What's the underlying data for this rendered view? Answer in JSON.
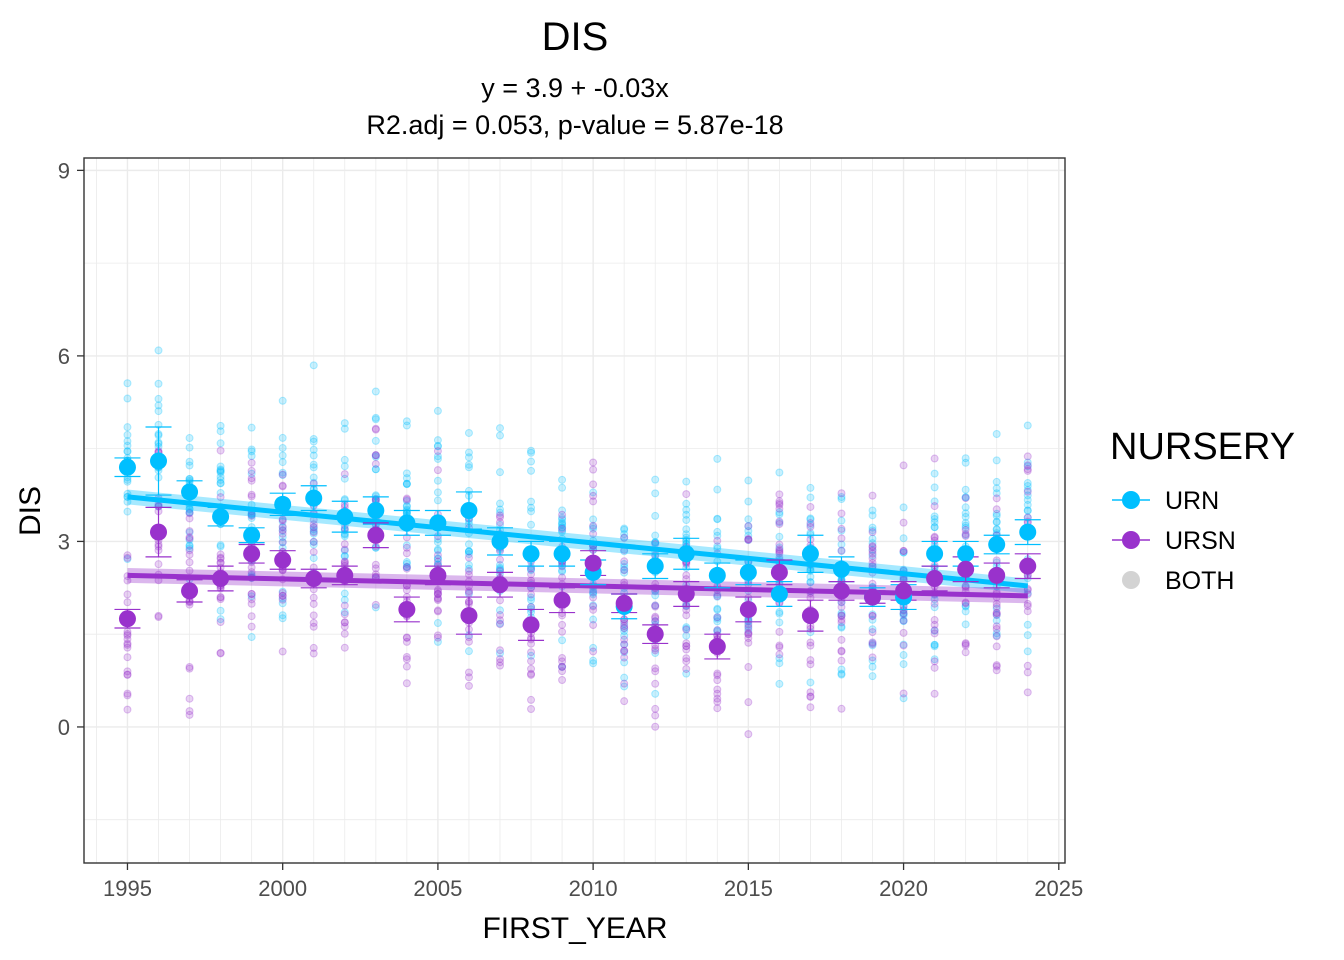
{
  "chart_data": {
    "type": "scatter",
    "title": "DIS",
    "subtitle_lines": [
      "y = 3.9 + -0.03x",
      "R2.adj = 0.053, p-value = 5.87e-18"
    ],
    "xlabel": "FIRST_YEAR",
    "ylabel": "DIS",
    "xlim": [
      1993.6,
      2025.2
    ],
    "ylim": [
      -2.2,
      9.2
    ],
    "x_ticks": [
      1995,
      2000,
      2005,
      2010,
      2015,
      2020,
      2025
    ],
    "x_tick_labels": [
      "1995",
      "2000",
      "2005",
      "2010",
      "2015",
      "2020",
      "2025"
    ],
    "y_ticks": [
      0,
      3,
      6,
      9
    ],
    "y_tick_labels": [
      "0",
      "3",
      "6",
      "9"
    ],
    "grid": true,
    "legend": {
      "title": "NURSERY",
      "position": "right",
      "entries": [
        "URN",
        "URSN",
        "BOTH"
      ]
    },
    "colors": {
      "URN": "#00bfff",
      "URSN": "#9932cc",
      "BOTH": "#d3d3d3"
    },
    "series": [
      {
        "name": "URN",
        "x": [
          1995,
          1996,
          1997,
          1998,
          1999,
          2000,
          2001,
          2002,
          2003,
          2004,
          2005,
          2006,
          2007,
          2008,
          2009,
          2010,
          2011,
          2012,
          2013,
          2014,
          2015,
          2016,
          2017,
          2018,
          2019,
          2020,
          2021,
          2022,
          2023,
          2024
        ],
        "y": [
          4.2,
          4.3,
          3.8,
          3.4,
          3.1,
          3.6,
          3.7,
          3.4,
          3.5,
          3.3,
          3.3,
          3.5,
          3.0,
          2.8,
          2.8,
          2.5,
          1.95,
          2.6,
          2.8,
          2.45,
          2.5,
          2.15,
          2.8,
          2.55,
          2.1,
          2.1,
          2.8,
          2.8,
          2.95,
          3.15
        ],
        "error": [
          0.15,
          0.55,
          0.18,
          0.15,
          0.12,
          0.18,
          0.2,
          0.25,
          0.22,
          0.2,
          0.2,
          0.3,
          0.22,
          0.2,
          0.2,
          0.2,
          0.2,
          0.2,
          0.25,
          0.2,
          0.2,
          0.2,
          0.3,
          0.2,
          0.15,
          0.2,
          0.2,
          0.2,
          0.15,
          0.2
        ],
        "trend": {
          "x": [
            1995,
            2024
          ],
          "y": [
            3.72,
            2.28
          ]
        }
      },
      {
        "name": "URSN",
        "x": [
          1995,
          1996,
          1997,
          1998,
          1999,
          2000,
          2001,
          2002,
          2003,
          2004,
          2005,
          2006,
          2007,
          2008,
          2009,
          2010,
          2011,
          2012,
          2013,
          2014,
          2015,
          2016,
          2017,
          2018,
          2019,
          2020,
          2021,
          2022,
          2023,
          2024
        ],
        "y": [
          1.75,
          3.15,
          2.2,
          2.4,
          2.8,
          2.7,
          2.4,
          2.45,
          3.1,
          1.9,
          2.45,
          1.8,
          2.3,
          1.65,
          2.05,
          2.65,
          2.0,
          1.5,
          2.15,
          1.3,
          1.9,
          2.5,
          1.8,
          2.2,
          2.1,
          2.2,
          2.4,
          2.55,
          2.45,
          2.6
        ],
        "error": [
          0.15,
          0.4,
          0.18,
          0.2,
          0.15,
          0.15,
          0.15,
          0.15,
          0.2,
          0.2,
          0.15,
          0.3,
          0.2,
          0.25,
          0.2,
          0.2,
          0.15,
          0.15,
          0.2,
          0.2,
          0.2,
          0.2,
          0.25,
          0.15,
          0.1,
          0.15,
          0.2,
          0.2,
          0.2,
          0.2
        ],
        "trend": {
          "x": [
            1995,
            2024
          ],
          "y": [
            2.45,
            2.12
          ]
        }
      }
    ]
  }
}
